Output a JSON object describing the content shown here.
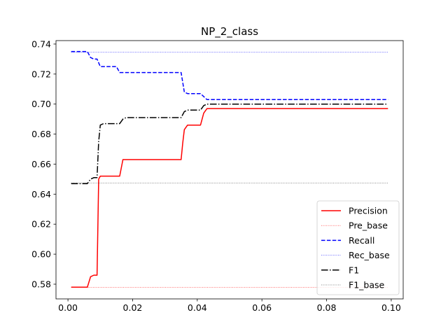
{
  "chart_data": {
    "type": "line",
    "title": "NP_2_class",
    "xlabel": "",
    "ylabel": "",
    "xlim": [
      -0.0037,
      0.1037
    ],
    "ylim": [
      0.5702,
      0.7423
    ],
    "x_ticks": [
      0.0,
      0.02,
      0.04,
      0.06,
      0.08,
      0.1
    ],
    "x_tick_labels": [
      "0.00",
      "0.02",
      "0.04",
      "0.06",
      "0.08",
      "0.10"
    ],
    "y_ticks": [
      0.58,
      0.6,
      0.62,
      0.64,
      0.66,
      0.68,
      0.7,
      0.72,
      0.74
    ],
    "y_tick_labels": [
      "0.58",
      "0.60",
      "0.62",
      "0.64",
      "0.66",
      "0.68",
      "0.70",
      "0.72",
      "0.74"
    ],
    "grid": false,
    "legend_position": "lower-right",
    "series": [
      {
        "name": "Precision",
        "color": "#ff0000",
        "style": "solid",
        "width": 1.5,
        "x": [
          0.001,
          0.002,
          0.003,
          0.004,
          0.005,
          0.006,
          0.007,
          0.008,
          0.009,
          0.0095,
          0.01,
          0.011,
          0.012,
          0.013,
          0.014,
          0.015,
          0.016,
          0.017,
          0.018,
          0.02,
          0.025,
          0.03,
          0.035,
          0.0355,
          0.036,
          0.037,
          0.038,
          0.039,
          0.04,
          0.041,
          0.042,
          0.043,
          0.044,
          0.05,
          0.06,
          0.07,
          0.08,
          0.09,
          0.099
        ],
        "y": [
          0.578,
          0.578,
          0.578,
          0.578,
          0.578,
          0.578,
          0.585,
          0.586,
          0.586,
          0.65,
          0.652,
          0.652,
          0.652,
          0.652,
          0.652,
          0.652,
          0.652,
          0.663,
          0.663,
          0.663,
          0.663,
          0.663,
          0.663,
          0.674,
          0.683,
          0.686,
          0.686,
          0.686,
          0.686,
          0.686,
          0.694,
          0.697,
          0.697,
          0.697,
          0.697,
          0.697,
          0.697,
          0.697,
          0.697
        ]
      },
      {
        "name": "Pre_base",
        "color": "#ff0000",
        "style": "dotted",
        "width": 0.6,
        "x": [
          0.001,
          0.099
        ],
        "y": [
          0.578,
          0.578
        ]
      },
      {
        "name": "Recall",
        "color": "#0000ff",
        "style": "dashed",
        "width": 1.5,
        "x": [
          0.001,
          0.002,
          0.003,
          0.004,
          0.005,
          0.006,
          0.007,
          0.008,
          0.009,
          0.01,
          0.011,
          0.012,
          0.013,
          0.014,
          0.015,
          0.016,
          0.017,
          0.018,
          0.02,
          0.025,
          0.03,
          0.035,
          0.036,
          0.037,
          0.038,
          0.039,
          0.04,
          0.041,
          0.042,
          0.043,
          0.044,
          0.05,
          0.06,
          0.07,
          0.08,
          0.09,
          0.099
        ],
        "y": [
          0.735,
          0.735,
          0.735,
          0.735,
          0.735,
          0.735,
          0.731,
          0.73,
          0.73,
          0.725,
          0.725,
          0.725,
          0.725,
          0.725,
          0.725,
          0.721,
          0.721,
          0.721,
          0.721,
          0.721,
          0.721,
          0.721,
          0.708,
          0.707,
          0.707,
          0.707,
          0.707,
          0.707,
          0.705,
          0.703,
          0.703,
          0.703,
          0.703,
          0.703,
          0.703,
          0.703,
          0.703
        ]
      },
      {
        "name": "Rec_base",
        "color": "#0000ff",
        "style": "dotted",
        "width": 0.6,
        "x": [
          0.001,
          0.099
        ],
        "y": [
          0.7345,
          0.7345
        ]
      },
      {
        "name": "F1",
        "color": "#000000",
        "style": "dashdot",
        "width": 1.5,
        "x": [
          0.001,
          0.002,
          0.003,
          0.004,
          0.005,
          0.006,
          0.007,
          0.008,
          0.009,
          0.0095,
          0.01,
          0.011,
          0.012,
          0.013,
          0.014,
          0.015,
          0.016,
          0.017,
          0.018,
          0.02,
          0.025,
          0.03,
          0.035,
          0.036,
          0.037,
          0.038,
          0.039,
          0.04,
          0.041,
          0.042,
          0.043,
          0.044,
          0.05,
          0.06,
          0.07,
          0.08,
          0.09,
          0.099
        ],
        "y": [
          0.647,
          0.647,
          0.647,
          0.647,
          0.647,
          0.647,
          0.65,
          0.651,
          0.651,
          0.675,
          0.686,
          0.687,
          0.687,
          0.687,
          0.687,
          0.687,
          0.687,
          0.69,
          0.691,
          0.691,
          0.691,
          0.691,
          0.691,
          0.695,
          0.696,
          0.696,
          0.696,
          0.696,
          0.696,
          0.699,
          0.7,
          0.7,
          0.7,
          0.7,
          0.7,
          0.7,
          0.7,
          0.7
        ]
      },
      {
        "name": "F1_base",
        "color": "#000000",
        "style": "dotted",
        "width": 0.6,
        "x": [
          0.001,
          0.099
        ],
        "y": [
          0.6475,
          0.6475
        ]
      }
    ]
  }
}
